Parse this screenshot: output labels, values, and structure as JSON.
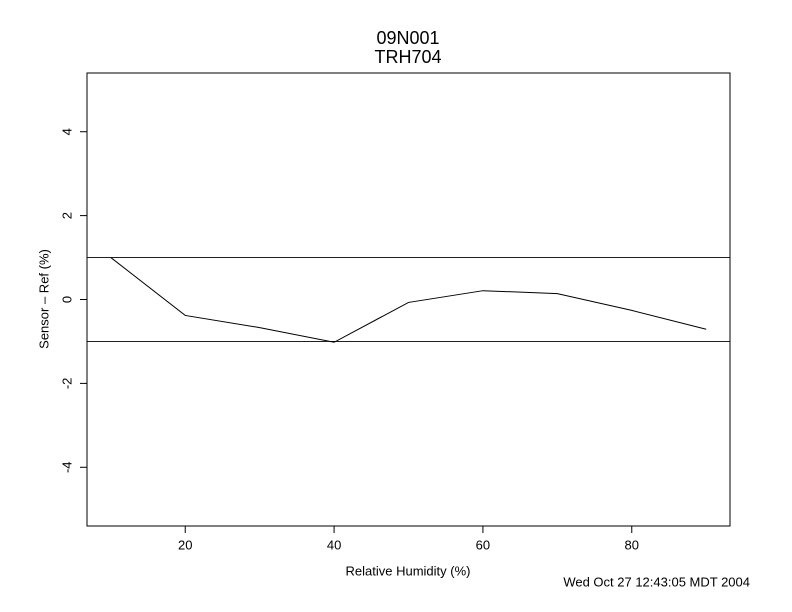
{
  "chart_data": {
    "type": "line",
    "title": "09N001",
    "subtitle": "TRH704",
    "x_label": "Relative Humidity (%)",
    "y_label": "Sensor – Ref (%)",
    "timestamp": "Wed Oct 27 12:43:05 MDT 2004",
    "x": [
      10,
      20,
      30,
      40,
      50,
      60,
      70,
      80,
      90
    ],
    "series": [
      {
        "color": "#000000",
        "values": [
          1.0,
          -0.38,
          -0.67,
          -1.02,
          -0.07,
          0.21,
          0.14,
          -0.26,
          -0.71
        ]
      }
    ],
    "hlines": [
      1,
      -1
    ],
    "xlim": [
      6.8,
      93.2
    ],
    "ylim": [
      -5.4,
      5.4
    ],
    "xticks": [
      20,
      40,
      60,
      80
    ],
    "yticks": [
      -4,
      -2,
      0,
      2,
      4
    ]
  }
}
